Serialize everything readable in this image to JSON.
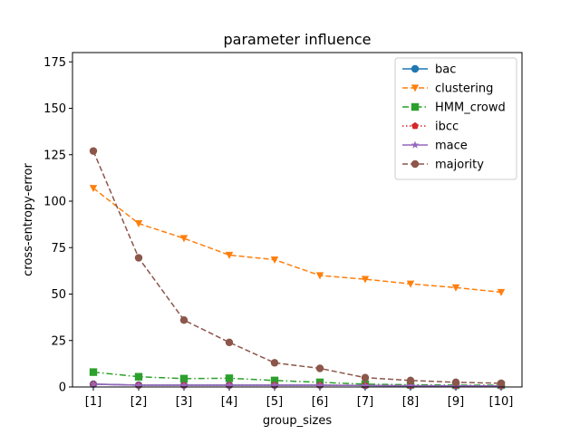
{
  "chart_data": {
    "type": "line",
    "title": "parameter influence",
    "xlabel": "group_sizes",
    "ylabel": "cross-entropy-error",
    "categories": [
      "[1]",
      "[2]",
      "[3]",
      "[4]",
      "[5]",
      "[6]",
      "[7]",
      "[8]",
      "[9]",
      "[10]"
    ],
    "ylim": [
      0,
      180
    ],
    "yticks": [
      "0",
      "25",
      "50",
      "75",
      "100",
      "125",
      "150",
      "175"
    ],
    "legend_position": "top-right",
    "grid": false,
    "series": [
      {
        "name": "bac",
        "color": "#1f77b4",
        "marker": "circle",
        "linestyle": "solid",
        "values": [
          1.5,
          1.0,
          1.0,
          1.0,
          1.0,
          1.0,
          0.8,
          0.7,
          0.6,
          0.6
        ]
      },
      {
        "name": "clustering",
        "color": "#ff7f0e",
        "marker": "triangle-down",
        "linestyle": "dashed",
        "values": [
          107,
          88,
          80,
          71,
          68.5,
          60,
          58,
          55.5,
          53.5,
          51
        ]
      },
      {
        "name": "HMM_crowd",
        "color": "#2ca02c",
        "marker": "square",
        "linestyle": "dashdot",
        "values": [
          8,
          5.5,
          4.5,
          4.7,
          3.5,
          2.5,
          1.5,
          1.2,
          1.0,
          1.0
        ]
      },
      {
        "name": "ibcc",
        "color": "#d62728",
        "marker": "pentagon",
        "linestyle": "dotted",
        "values": [
          1.5,
          1.0,
          1.0,
          1.0,
          1.0,
          1.0,
          0.8,
          0.7,
          0.6,
          0.6
        ]
      },
      {
        "name": "mace",
        "color": "#9467bd",
        "marker": "star",
        "linestyle": "solid",
        "values": [
          1.5,
          1.0,
          1.0,
          1.0,
          1.0,
          1.0,
          0.8,
          0.7,
          0.6,
          0.6
        ]
      },
      {
        "name": "majority",
        "color": "#8c564b",
        "marker": "circle",
        "linestyle": "dashed",
        "values": [
          127,
          69.5,
          36,
          24,
          13,
          10,
          5,
          3.5,
          2.5,
          2
        ]
      }
    ]
  }
}
